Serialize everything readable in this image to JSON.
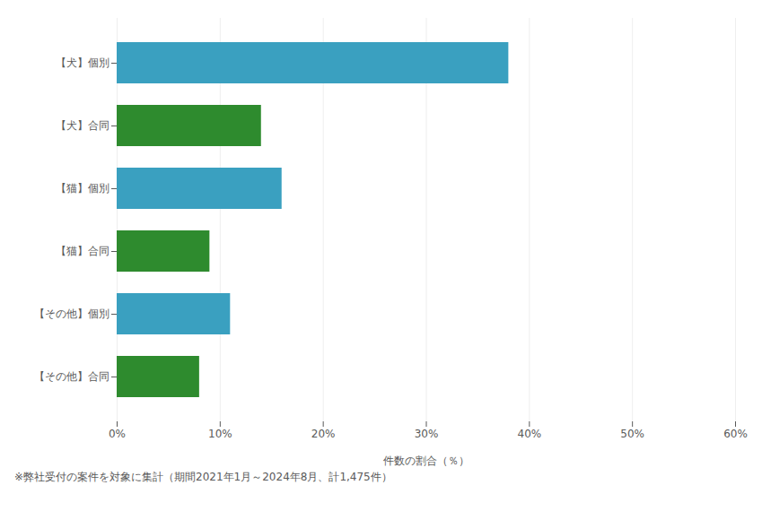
{
  "chart_data": {
    "type": "bar",
    "orientation": "horizontal",
    "categories": [
      "【犬】個別",
      "【犬】合同",
      "【猫】個別",
      "【猫】合同",
      "【その他】個別",
      "【その他】合同"
    ],
    "values": [
      38,
      14,
      16,
      9,
      11,
      8
    ],
    "colors": [
      "#3aa0c0",
      "#2e8b2e",
      "#3aa0c0",
      "#2e8b2e",
      "#3aa0c0",
      "#2e8b2e"
    ],
    "xlabel": "件数の割合（％）",
    "xlim": [
      0,
      60
    ],
    "xticks": [
      {
        "value": 0,
        "label": "0%"
      },
      {
        "value": 10,
        "label": "10%"
      },
      {
        "value": 20,
        "label": "20%"
      },
      {
        "value": 30,
        "label": "30%"
      },
      {
        "value": 40,
        "label": "40%"
      },
      {
        "value": 50,
        "label": "50%"
      },
      {
        "value": 60,
        "label": "60%"
      }
    ],
    "grid": true,
    "annotations": [
      "※弊社受付の案件を対象に集計（期間2021年1月～2024年8月、計1,475件）"
    ]
  }
}
